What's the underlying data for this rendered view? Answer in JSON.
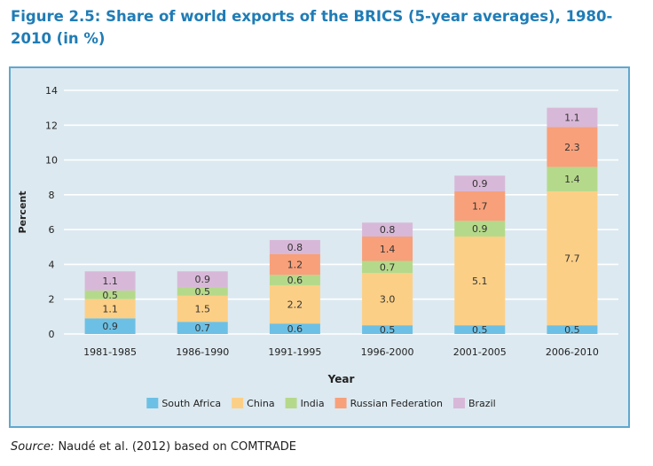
{
  "figure": {
    "title": "Figure 2.5: Share of world exports of the BRICS (5-year averages), 1980-2010 (in %)",
    "source_label": "Source:",
    "source_text": " Naudé et al. (2012) based on COMTRADE"
  },
  "colors": {
    "panel_bg": "#dce9f0",
    "panel_border": "#5fa8cf",
    "title": "#1f7cb6"
  },
  "chart_data": {
    "type": "bar",
    "stacked": true,
    "ylabel": "Percent",
    "xlabel": "Year",
    "ylim": [
      0,
      14
    ],
    "yticks": [
      0,
      2,
      4,
      6,
      8,
      10,
      12,
      14
    ],
    "grid": true,
    "legend_position": "bottom",
    "categories": [
      "1981-1985",
      "1986-1990",
      "1991-1995",
      "1996-2000",
      "2001-2005",
      "2006-2010"
    ],
    "series": [
      {
        "name": "South Africa",
        "color": "#6cc0e5",
        "values": [
          0.9,
          0.7,
          0.6,
          0.5,
          0.5,
          0.5
        ]
      },
      {
        "name": "China",
        "color": "#fccf86",
        "values": [
          1.1,
          1.5,
          2.2,
          3.0,
          5.1,
          7.7
        ]
      },
      {
        "name": "India",
        "color": "#b5d98a",
        "values": [
          0.5,
          0.5,
          0.6,
          0.7,
          0.9,
          1.4
        ]
      },
      {
        "name": "Russian Federation",
        "color": "#f8a07a",
        "values": [
          null,
          null,
          1.2,
          1.4,
          1.7,
          2.3
        ]
      },
      {
        "name": "Brazil",
        "color": "#d8b8d8",
        "values": [
          1.1,
          0.9,
          0.8,
          0.8,
          0.9,
          1.1
        ]
      }
    ]
  }
}
